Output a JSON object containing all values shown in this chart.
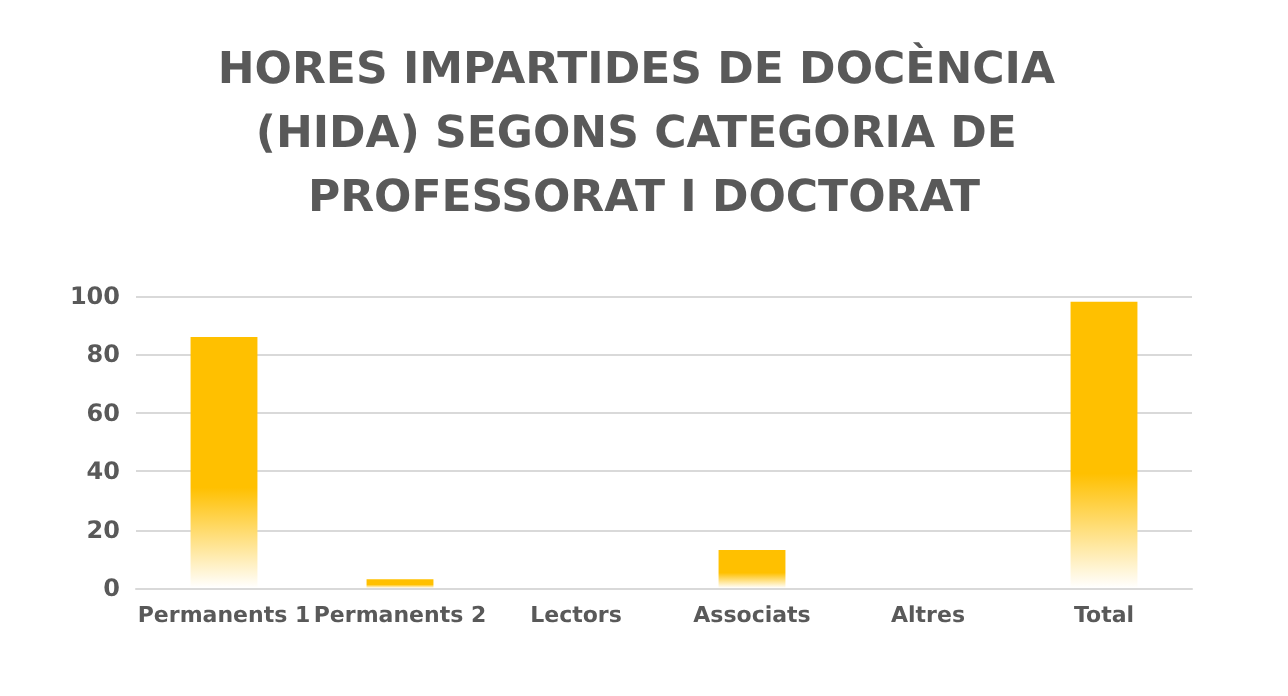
{
  "chart_data": {
    "type": "bar",
    "title": "HORES IMPARTIDES DE DOCÈNCIA (HIDA) SEGONS CATEGORIA DE PROFESSORAT I DOCTORAT",
    "categories": [
      "Permanents 1",
      "Permanents 2",
      "Lectors",
      "Associats",
      "Altres",
      "Total"
    ],
    "values": [
      86,
      3,
      0,
      13,
      0,
      98
    ],
    "color": "#ffc000",
    "ylim": [
      0,
      100
    ],
    "yticks": [
      0,
      20,
      40,
      60,
      80,
      100
    ],
    "grid": "y"
  }
}
